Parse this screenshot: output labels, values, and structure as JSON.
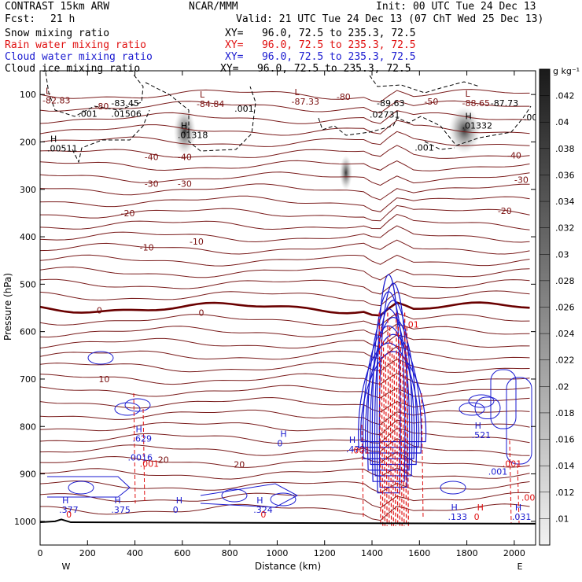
{
  "header": {
    "model": "CONTRAST 15km ARW",
    "org": "NCAR/MMM",
    "init": "Init: 00 UTC Tue 24 Dec 13",
    "fcst_label": "Fcst:",
    "fcst_value": "21 h",
    "valid": "Valid: 21 UTC Tue 24 Dec 13 (07 ChT Wed 25 Dec 13)"
  },
  "fields": [
    {
      "name": "Snow mixing ratio",
      "xy": "XY=   96.0, 72.5 to 235.3, 72.5",
      "color": "#000000"
    },
    {
      "name": "Rain water mixing ratio",
      "xy": "XY=   96.0, 72.5 to 235.3, 72.5",
      "color": "#e01010"
    },
    {
      "name": "Cloud water mixing ratio",
      "xy": "XY=   96.0, 72.5 to 235.3, 72.5",
      "color": "#1a1ad0"
    },
    {
      "name": "Cloud ice mixing ratio",
      "xy": "XY=   96.0, 72.5 to 235.3, 72.5",
      "color": "#000000"
    }
  ],
  "chart_data": {
    "type": "cross-section",
    "xlabel": "Distance (km)",
    "ylabel": "Pressure (hPa)",
    "xlim": [
      0,
      2090
    ],
    "ylim": [
      1050,
      50
    ],
    "x_ticks": [
      0,
      200,
      400,
      600,
      800,
      1000,
      1200,
      1400,
      1600,
      1800,
      2000
    ],
    "y_ticks": [
      100,
      200,
      300,
      400,
      500,
      600,
      700,
      800,
      900,
      1000
    ],
    "x_end_labels": {
      "left": "W",
      "right": "E"
    },
    "colorbar": {
      "unit": "g kg⁻¹",
      "ticks": [
        ".042",
        ".04",
        ".038",
        ".036",
        ".034",
        ".032",
        ".03",
        ".028",
        ".026",
        ".024",
        ".022",
        ".02",
        ".018",
        ".016",
        ".014",
        ".012",
        ".01"
      ],
      "values": [
        0.042,
        0.04,
        0.038,
        0.036,
        0.034,
        0.032,
        0.03,
        0.028,
        0.026,
        0.024,
        0.022,
        0.02,
        0.018,
        0.016,
        0.014,
        0.012,
        0.01
      ]
    },
    "temperature_labels": [
      {
        "x": 260,
        "p": 125,
        "text": "-80"
      },
      {
        "x": 1280,
        "p": 105,
        "text": "-80"
      },
      {
        "x": 470,
        "p": 232,
        "text": "-40"
      },
      {
        "x": 610,
        "p": 232,
        "text": "-40"
      },
      {
        "x": 2000,
        "p": 228,
        "text": "-40"
      },
      {
        "x": 470,
        "p": 288,
        "text": "-30"
      },
      {
        "x": 610,
        "p": 288,
        "text": "-30"
      },
      {
        "x": 2030,
        "p": 280,
        "text": "-30"
      },
      {
        "x": 370,
        "p": 350,
        "text": "-20"
      },
      {
        "x": 1960,
        "p": 345,
        "text": "-20"
      },
      {
        "x": 450,
        "p": 422,
        "text": "-10"
      },
      {
        "x": 660,
        "p": 410,
        "text": "-10"
      },
      {
        "x": 250,
        "p": 555,
        "text": "0"
      },
      {
        "x": 680,
        "p": 560,
        "text": "0"
      },
      {
        "x": 270,
        "p": 700,
        "text": "10"
      },
      {
        "x": 520,
        "p": 870,
        "text": "20"
      },
      {
        "x": 840,
        "p": 880,
        "text": "20"
      },
      {
        "x": 1650,
        "p": 115,
        "text": "-50"
      }
    ],
    "extrema": [
      {
        "x": 10,
        "p": 112,
        "mark": "L",
        "value": "-82.83",
        "color": "#7a1010"
      },
      {
        "x": 300,
        "p": 118,
        "mark": "",
        "value": "-83.45",
        "color": "#000000"
      },
      {
        "x": 660,
        "p": 120,
        "mark": "L",
        "value": "-84.84",
        "color": "#7a1010"
      },
      {
        "x": 1060,
        "p": 115,
        "mark": "L",
        "value": "-87.33",
        "color": "#7a1010"
      },
      {
        "x": 1420,
        "p": 118,
        "mark": "",
        "value": "-89.63",
        "color": "#000000"
      },
      {
        "x": 1780,
        "p": 118,
        "mark": "L",
        "value": "-88.65",
        "color": "#7a1010"
      },
      {
        "x": 1900,
        "p": 118,
        "mark": "",
        "value": "-87.73",
        "color": "#000000"
      },
      {
        "x": 160,
        "p": 140,
        "mark": "",
        "value": ".001",
        "color": "#000000"
      },
      {
        "x": 300,
        "p": 140,
        "mark": "",
        "value": ".01506",
        "color": "#000000"
      },
      {
        "x": 820,
        "p": 130,
        "mark": "",
        "value": ".001",
        "color": "#000000"
      },
      {
        "x": 1390,
        "p": 142,
        "mark": "",
        "value": ".02731",
        "color": "#000000"
      },
      {
        "x": 1780,
        "p": 165,
        "mark": "H",
        "value": ".01332",
        "color": "#000000"
      },
      {
        "x": 2040,
        "p": 148,
        "mark": "",
        "value": ".008",
        "color": "#000000"
      },
      {
        "x": 580,
        "p": 185,
        "mark": "H",
        "value": ".01318",
        "color": "#000000"
      },
      {
        "x": 30,
        "p": 213,
        "mark": "H",
        "value": ".00511",
        "color": "#000000"
      },
      {
        "x": 1580,
        "p": 212,
        "mark": "",
        "value": ".001",
        "color": "#000000"
      },
      {
        "x": 390,
        "p": 825,
        "mark": "H",
        "value": ".629",
        "color": "#1a1ad0"
      },
      {
        "x": 370,
        "p": 865,
        "mark": "",
        "value": ".0016",
        "color": "#1a1ad0"
      },
      {
        "x": 1000,
        "p": 835,
        "mark": "H",
        "value": "0",
        "color": "#1a1ad0"
      },
      {
        "x": 1290,
        "p": 848,
        "mark": "H",
        "value": ".473",
        "color": "#1a1ad0"
      },
      {
        "x": 1820,
        "p": 818,
        "mark": "H",
        "value": ".521",
        "color": "#1a1ad0"
      },
      {
        "x": 1890,
        "p": 895,
        "mark": "",
        "value": ".001",
        "color": "#1a1ad0"
      },
      {
        "x": 80,
        "p": 975,
        "mark": "H",
        "value": ".377",
        "color": "#1a1ad0"
      },
      {
        "x": 300,
        "p": 975,
        "mark": "H",
        "value": ".375",
        "color": "#1a1ad0"
      },
      {
        "x": 560,
        "p": 975,
        "mark": "H",
        "value": "0",
        "color": "#1a1ad0"
      },
      {
        "x": 900,
        "p": 975,
        "mark": "H",
        "value": ".324",
        "color": "#1a1ad0"
      },
      {
        "x": 1720,
        "p": 990,
        "mark": "H",
        "value": ".133",
        "color": "#1a1ad0"
      },
      {
        "x": 1990,
        "p": 990,
        "mark": "H",
        "value": ".031",
        "color": "#1a1ad0"
      },
      {
        "x": 420,
        "p": 878,
        "mark": "",
        "value": ".001",
        "color": "#e01010"
      },
      {
        "x": 1310,
        "p": 850,
        "mark": "",
        "value": ".001",
        "color": "#e01010"
      },
      {
        "x": 1950,
        "p": 878,
        "mark": "",
        "value": ".001",
        "color": "#e01010"
      },
      {
        "x": 2030,
        "p": 950,
        "mark": "",
        "value": ".001",
        "color": "#e01010"
      },
      {
        "x": 1540,
        "p": 585,
        "mark": "",
        "value": ".01",
        "color": "#e01010"
      },
      {
        "x": 1830,
        "p": 990,
        "mark": "H",
        "value": "0",
        "color": "#e01010"
      },
      {
        "x": 110,
        "p": 985,
        "mark": "",
        "value": "0",
        "color": "#e01010"
      },
      {
        "x": 930,
        "p": 985,
        "mark": "",
        "value": "0",
        "color": "#e01010"
      }
    ]
  }
}
